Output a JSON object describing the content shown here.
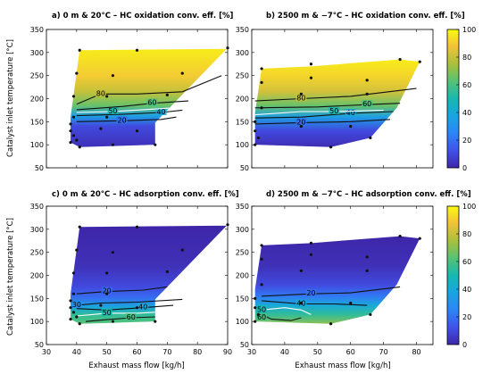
{
  "chart_data": [
    {
      "type": "heatmap",
      "panel": "a",
      "title": "a) 0 m & 20°C – HC oxidation conv. eff. [%]",
      "xlabel": "",
      "ylabel": "Catalyst inlet temperature [°C]",
      "xlim": [
        30,
        90
      ],
      "ylim": [
        50,
        350
      ],
      "xticks": [
        30,
        40,
        50,
        60,
        70,
        80,
        90
      ],
      "yticks": [
        50,
        100,
        150,
        200,
        250,
        300,
        350
      ],
      "region": [
        [
          38,
          160
        ],
        [
          41,
          305
        ],
        [
          90,
          308
        ],
        [
          90,
          310
        ],
        [
          66,
          148
        ],
        [
          66,
          100
        ],
        [
          41,
          95
        ],
        [
          38,
          105
        ]
      ],
      "color_bands": [
        {
          "temp": 95,
          "value": 3
        },
        {
          "temp": 140,
          "value": 10
        },
        {
          "temp": 162,
          "value": 35
        },
        {
          "temp": 185,
          "value": 65
        },
        {
          "temp": 215,
          "value": 80
        },
        {
          "temp": 250,
          "value": 90
        },
        {
          "temp": 300,
          "value": 96
        }
      ],
      "contours": [
        {
          "level": 20,
          "label": "20",
          "points": [
            [
              40,
              150
            ],
            [
              55,
              152
            ],
            [
              68,
              155
            ],
            [
              73,
              160
            ]
          ],
          "label_at": [
            55,
            152
          ]
        },
        {
          "level": 40,
          "label": "40",
          "points": [
            [
              40,
              163
            ],
            [
              55,
              166
            ],
            [
              68,
              170
            ],
            [
              75,
              175
            ]
          ],
          "label_at": [
            68,
            170
          ]
        },
        {
          "level": 50,
          "label": "50",
          "points": [
            [
              40,
              170
            ],
            [
              52,
              172
            ],
            [
              62,
              176
            ],
            [
              72,
              180
            ]
          ],
          "label_at": [
            52,
            172
          ]
        },
        {
          "level": 60,
          "label": "60",
          "points": [
            [
              40,
              176
            ],
            [
              55,
              183
            ],
            [
              65,
              190
            ],
            [
              77,
              195
            ]
          ],
          "label_at": [
            65,
            190
          ]
        },
        {
          "level": 80,
          "label": "80",
          "points": [
            [
              40,
              188
            ],
            [
              48,
              210
            ],
            [
              60,
              210
            ],
            [
              75,
              215
            ],
            [
              88,
              250
            ]
          ],
          "label_at": [
            48,
            210
          ]
        }
      ],
      "points": [
        [
          41,
          305
        ],
        [
          60,
          305
        ],
        [
          90,
          310
        ],
        [
          40,
          255
        ],
        [
          52,
          250
        ],
        [
          75,
          255
        ],
        [
          39,
          205
        ],
        [
          50,
          205
        ],
        [
          70,
          208
        ],
        [
          39,
          160
        ],
        [
          50,
          160
        ],
        [
          38,
          145
        ],
        [
          38,
          130
        ],
        [
          39,
          120
        ],
        [
          40,
          110
        ],
        [
          38,
          105
        ],
        [
          41,
          95
        ],
        [
          52,
          100
        ],
        [
          66,
          100
        ],
        [
          48,
          135
        ],
        [
          60,
          130
        ]
      ]
    },
    {
      "type": "heatmap",
      "panel": "b",
      "title": "b) 2500 m & −7°C – HC oxidation conv. eff. [%]",
      "xlabel": "",
      "ylabel": "",
      "xlim": [
        30,
        85
      ],
      "ylim": [
        50,
        350
      ],
      "xticks": [
        30,
        40,
        50,
        60,
        70,
        80
      ],
      "yticks": [
        50,
        100,
        150,
        200,
        250,
        300,
        350
      ],
      "region": [
        [
          31,
          170
        ],
        [
          33,
          265
        ],
        [
          48,
          270
        ],
        [
          75,
          285
        ],
        [
          81,
          280
        ],
        [
          74,
          180
        ],
        [
          66,
          115
        ],
        [
          54,
          95
        ],
        [
          31,
          100
        ]
      ],
      "color_bands": [
        {
          "temp": 95,
          "value": 2
        },
        {
          "temp": 130,
          "value": 10
        },
        {
          "temp": 160,
          "value": 35
        },
        {
          "temp": 185,
          "value": 65
        },
        {
          "temp": 215,
          "value": 82
        },
        {
          "temp": 250,
          "value": 92
        },
        {
          "temp": 285,
          "value": 97
        }
      ],
      "contours": [
        {
          "level": 20,
          "label": "20",
          "points": [
            [
              31,
              145
            ],
            [
              45,
              148
            ],
            [
              60,
              150
            ],
            [
              72,
              155
            ]
          ],
          "label_at": [
            45,
            148
          ]
        },
        {
          "level": 40,
          "label": "40",
          "points": [
            [
              31,
              158
            ],
            [
              45,
              160
            ],
            [
              60,
              168
            ],
            [
              73,
              172
            ]
          ],
          "label_at": [
            60,
            168
          ]
        },
        {
          "level": 50,
          "label": "50",
          "points": [
            [
              31,
              165
            ],
            [
              45,
              172
            ],
            [
              55,
              172
            ],
            [
              70,
              175
            ]
          ],
          "label_at": [
            55,
            172
          ]
        },
        {
          "level": 60,
          "label": "60",
          "points": [
            [
              31,
              180
            ],
            [
              50,
              182
            ],
            [
              65,
              187
            ],
            [
              75,
              190
            ]
          ],
          "label_at": [
            65,
            187
          ]
        },
        {
          "level": 80,
          "label": "80",
          "points": [
            [
              31,
              195
            ],
            [
              45,
              200
            ],
            [
              60,
              205
            ],
            [
              80,
              222
            ]
          ],
          "label_at": [
            45,
            200
          ]
        }
      ],
      "points": [
        [
          33,
          265
        ],
        [
          48,
          275
        ],
        [
          75,
          285
        ],
        [
          81,
          280
        ],
        [
          33,
          235
        ],
        [
          48,
          245
        ],
        [
          65,
          240
        ],
        [
          33,
          180
        ],
        [
          45,
          210
        ],
        [
          65,
          210
        ],
        [
          31,
          150
        ],
        [
          31,
          130
        ],
        [
          32,
          115
        ],
        [
          31,
          100
        ],
        [
          54,
          95
        ],
        [
          66,
          115
        ],
        [
          45,
          140
        ],
        [
          60,
          140
        ]
      ]
    },
    {
      "type": "heatmap",
      "panel": "c",
      "title": "c) 0 m & 20°C – HC adsorption conv. eff. [%]",
      "xlabel": "Exhaust mass flow [kg/h]",
      "ylabel": "Catalyst inlet temperature [°C]",
      "xlim": [
        30,
        90
      ],
      "ylim": [
        50,
        350
      ],
      "xticks": [
        30,
        40,
        50,
        60,
        70,
        80,
        90
      ],
      "yticks": [
        50,
        100,
        150,
        200,
        250,
        300,
        350
      ],
      "region": [
        [
          38,
          160
        ],
        [
          41,
          305
        ],
        [
          90,
          308
        ],
        [
          90,
          310
        ],
        [
          66,
          148
        ],
        [
          66,
          100
        ],
        [
          41,
          95
        ],
        [
          38,
          105
        ]
      ],
      "color_bands": [
        {
          "temp": 95,
          "value": 62
        },
        {
          "temp": 115,
          "value": 55
        },
        {
          "temp": 130,
          "value": 40
        },
        {
          "temp": 150,
          "value": 20
        },
        {
          "temp": 175,
          "value": 10
        },
        {
          "temp": 220,
          "value": 3
        },
        {
          "temp": 305,
          "value": 0
        }
      ],
      "contours": [
        {
          "level": 20,
          "label": "20",
          "points": [
            [
              40,
              160
            ],
            [
              50,
              165
            ],
            [
              62,
              168
            ],
            [
              70,
              175
            ]
          ],
          "label_at": [
            50,
            165
          ]
        },
        {
          "level": 30,
          "label": "30",
          "points": [
            [
              40,
              135
            ],
            [
              48,
              140
            ],
            [
              60,
              142
            ],
            [
              75,
              148
            ]
          ],
          "label_at": [
            40,
            135
          ]
        },
        {
          "level": 40,
          "label": "40",
          "points": [
            [
              40,
              128
            ],
            [
              50,
              125
            ],
            [
              62,
              130
            ],
            [
              72,
              135
            ]
          ],
          "label_at": [
            62,
            130
          ]
        },
        {
          "level": 50,
          "label": "50",
          "points": [
            [
              40,
              112
            ],
            [
              50,
              118
            ],
            [
              60,
              118
            ],
            [
              66,
              120
            ]
          ],
          "label_at": [
            50,
            118
          ]
        },
        {
          "level": 60,
          "label": "60",
          "points": [
            [
              43,
              100
            ],
            [
              50,
              104
            ],
            [
              58,
              108
            ],
            [
              66,
              110
            ]
          ],
          "label_at": [
            58,
            108
          ]
        }
      ],
      "points": [
        [
          41,
          305
        ],
        [
          60,
          305
        ],
        [
          90,
          310
        ],
        [
          40,
          255
        ],
        [
          52,
          250
        ],
        [
          75,
          255
        ],
        [
          39,
          205
        ],
        [
          50,
          205
        ],
        [
          70,
          208
        ],
        [
          39,
          160
        ],
        [
          50,
          160
        ],
        [
          38,
          145
        ],
        [
          38,
          130
        ],
        [
          39,
          120
        ],
        [
          40,
          110
        ],
        [
          38,
          105
        ],
        [
          41,
          95
        ],
        [
          52,
          100
        ],
        [
          66,
          100
        ],
        [
          48,
          135
        ],
        [
          60,
          130
        ]
      ]
    },
    {
      "type": "heatmap",
      "panel": "d",
      "title": "d) 2500 m & −7°C – HC adsorption conv. eff. [%]",
      "xlabel": "Exhaust mass flow [kg/h]",
      "ylabel": "",
      "xlim": [
        30,
        85
      ],
      "ylim": [
        50,
        350
      ],
      "xticks": [
        30,
        40,
        50,
        60,
        70,
        80
      ],
      "yticks": [
        50,
        100,
        150,
        200,
        250,
        300,
        350
      ],
      "region": [
        [
          31,
          170
        ],
        [
          33,
          265
        ],
        [
          48,
          270
        ],
        [
          75,
          285
        ],
        [
          81,
          280
        ],
        [
          74,
          180
        ],
        [
          66,
          115
        ],
        [
          54,
          95
        ],
        [
          31,
          100
        ]
      ],
      "color_bands": [
        {
          "temp": 95,
          "value": 70
        },
        {
          "temp": 115,
          "value": 55
        },
        {
          "temp": 135,
          "value": 40
        },
        {
          "temp": 155,
          "value": 22
        },
        {
          "temp": 180,
          "value": 10
        },
        {
          "temp": 220,
          "value": 3
        },
        {
          "temp": 285,
          "value": 0
        }
      ],
      "contours": [
        {
          "level": 20,
          "label": "20",
          "points": [
            [
              33,
              155
            ],
            [
              48,
              160
            ],
            [
              60,
              162
            ],
            [
              75,
              175
            ]
          ],
          "label_at": [
            48,
            160
          ]
        },
        {
          "level": 40,
          "label": "40",
          "points": [
            [
              33,
              145
            ],
            [
              45,
              138
            ],
            [
              55,
              138
            ],
            [
              65,
              135
            ]
          ],
          "label_at": [
            45,
            138
          ]
        },
        {
          "level": 50,
          "label": "50",
          "points": [
            [
              33,
              125
            ],
            [
              40,
              130
            ],
            [
              45,
              125
            ],
            [
              48,
              115
            ]
          ],
          "label_at": [
            33,
            125
          ]
        },
        {
          "level": 60,
          "label": "60",
          "points": [
            [
              33,
              115
            ],
            [
              36,
              105
            ],
            [
              42,
              102
            ],
            [
              45,
              108
            ]
          ],
          "label_at": [
            33,
            108
          ]
        }
      ],
      "points": [
        [
          33,
          265
        ],
        [
          48,
          270
        ],
        [
          75,
          285
        ],
        [
          81,
          280
        ],
        [
          33,
          235
        ],
        [
          48,
          245
        ],
        [
          65,
          240
        ],
        [
          33,
          180
        ],
        [
          45,
          210
        ],
        [
          65,
          210
        ],
        [
          31,
          150
        ],
        [
          31,
          130
        ],
        [
          32,
          115
        ],
        [
          31,
          100
        ],
        [
          54,
          95
        ],
        [
          66,
          115
        ],
        [
          45,
          140
        ],
        [
          60,
          140
        ]
      ]
    }
  ],
  "colorbars": [
    {
      "min": 0,
      "max": 100,
      "ticks": [
        0,
        20,
        40,
        60,
        80,
        100
      ]
    },
    {
      "min": 0,
      "max": 100,
      "ticks": [
        0,
        20,
        40,
        60,
        80,
        100
      ]
    }
  ],
  "colors": {
    "contour": "#111111",
    "contour_highlight": "#ffffff",
    "point": "#111111"
  }
}
